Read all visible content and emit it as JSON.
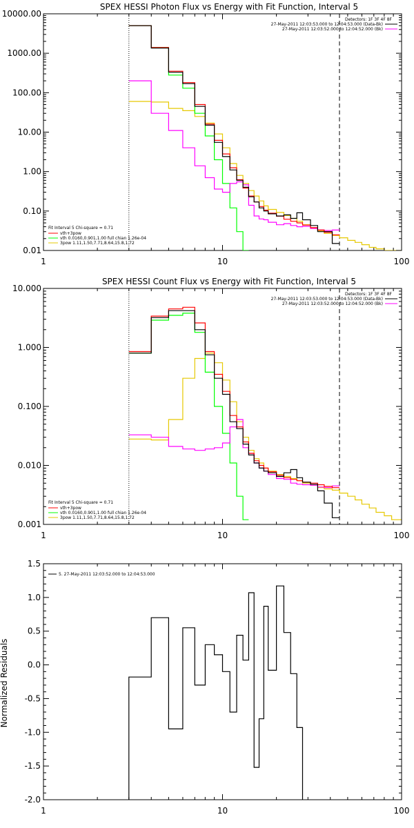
{
  "colors": {
    "background": "#ffffff",
    "axes": "#000000",
    "total": "#000000",
    "fit": "#ff0000",
    "thermal": "#00ff00",
    "power": "#e6c800",
    "background_series": "#ff00ff"
  },
  "chart_data": [
    {
      "type": "line",
      "title": "SPEX HESSI Photon Flux vs Energy with Fit Function, Interval 5",
      "xlabel": "",
      "ylabel": "",
      "xscale": "log",
      "yscale": "log",
      "xlim": [
        1,
        100
      ],
      "ylim": [
        0.01,
        10000
      ],
      "grid": false,
      "x_ticks": [
        "1",
        "10",
        "100"
      ],
      "y_ticks": [
        "0.01",
        "0.10",
        "1.00",
        "10.00",
        "100.00",
        "1000.00",
        "10000.00"
      ],
      "fit_range_markers": {
        "dotted": 3,
        "dashed": 45
      },
      "legend_topright": {
        "header": "Detectors: 1F 3F 4F 8F",
        "lines": [
          "27-May-2011 12:03:53.000 to 12:04:53.000 (Data-Bk)",
          "27-May-2011 12:03:52.000 to 12:04:52.000 (Bk)"
        ],
        "colors": [
          "total",
          "background_series"
        ]
      },
      "legend_bottomleft": {
        "lines": [
          "Fit Interval 5   Chi-square = 0.71",
          "vth+3pow",
          "vth 0.0160,0.901,1.00  full chian 1.26e-04",
          "3pow 1.11,1.50,7.71,8.64,15.8,1.72"
        ],
        "colors": [
          "none",
          "fit",
          "thermal",
          "power"
        ]
      },
      "edges": [
        3,
        4,
        5,
        6,
        7,
        8,
        9,
        10,
        11,
        12,
        13,
        14,
        15,
        16,
        17,
        18,
        20,
        22,
        24,
        26,
        28,
        31,
        34,
        37,
        41,
        45,
        50,
        55,
        60,
        66,
        72,
        80,
        88,
        100
      ],
      "series": [
        {
          "name": "Data-Bk",
          "color_key": "total",
          "values": [
            5000,
            1350,
            330,
            170,
            45,
            15,
            5.5,
            2.4,
            1.1,
            0.6,
            0.4,
            0.23,
            0.17,
            0.12,
            0.1,
            0.085,
            0.075,
            0.08,
            0.065,
            0.09,
            0.06,
            0.043,
            0.03,
            0.03,
            0.015
          ]
        },
        {
          "name": "Bk",
          "color_key": "background_series",
          "values": [
            200,
            30,
            11,
            4,
            1.4,
            0.7,
            0.36,
            0.3,
            0.5,
            0.55,
            0.46,
            0.14,
            0.075,
            0.063,
            0.06,
            0.052,
            0.045,
            0.048,
            0.043,
            0.04,
            0.041,
            0.036,
            0.033,
            0.032,
            0.033
          ]
        },
        {
          "name": "vth+3pow",
          "color_key": "fit",
          "values": [
            5000,
            1400,
            350,
            180,
            50,
            16,
            6.2,
            2.8,
            1.25,
            0.62,
            0.38,
            0.24,
            0.17,
            0.13,
            0.105,
            0.088,
            0.074,
            0.062,
            0.055,
            0.05,
            0.044,
            0.038,
            0.033,
            0.029,
            0.025
          ]
        },
        {
          "name": "vth",
          "color_key": "thermal",
          "values": [
            5000,
            1400,
            280,
            130,
            30,
            8,
            2,
            0.5,
            0.12,
            0.03,
            0.008
          ]
        },
        {
          "name": "3pow",
          "color_key": "power",
          "values": [
            60,
            58,
            40,
            35,
            25,
            17,
            9,
            4,
            1.6,
            0.8,
            0.5,
            0.33,
            0.24,
            0.18,
            0.135,
            0.11,
            0.092,
            0.077,
            0.065,
            0.055,
            0.045,
            0.037,
            0.031,
            0.027,
            0.024,
            0.021,
            0.018,
            0.016,
            0.014,
            0.012,
            0.011,
            0.01,
            0.009
          ]
        }
      ]
    },
    {
      "type": "line",
      "title": "SPEX HESSI Count Flux vs Energy with Fit Function, Interval 5",
      "xlabel": "",
      "ylabel": "",
      "xscale": "log",
      "yscale": "log",
      "xlim": [
        1,
        100
      ],
      "ylim": [
        0.001,
        10
      ],
      "grid": false,
      "x_ticks": [
        "1",
        "10",
        "100"
      ],
      "y_ticks": [
        "0.001",
        "0.010",
        "0.100",
        "1.000",
        "10.000"
      ],
      "fit_range_markers": {
        "dotted": 3,
        "dashed": 45
      },
      "legend_topright": {
        "header": "Detectors: 1F 3F 4F 8F",
        "lines": [
          "27-May-2011 12:03:53.000 to 12:04:53.000 (Data-Bk)",
          "27-May-2011 12:03:52.000 to 12:04:52.000 (Bk)"
        ],
        "colors": [
          "total",
          "background_series"
        ]
      },
      "legend_bottomleft": {
        "lines": [
          "Fit Interval 5   Chi-square = 0.71",
          "vth+3pow",
          "vth 0.0160,0.901,1.00  full chian 1.26e-04",
          "3pow 1.11,1.50,7.71,8.64,15.8,1.72"
        ],
        "colors": [
          "none",
          "fit",
          "thermal",
          "power"
        ]
      },
      "edges": [
        3,
        4,
        5,
        6,
        7,
        8,
        9,
        10,
        11,
        12,
        13,
        14,
        15,
        16,
        17,
        18,
        20,
        22,
        24,
        26,
        28,
        31,
        34,
        37,
        41,
        45,
        50,
        55,
        60,
        66,
        72,
        80,
        88,
        100
      ],
      "series": [
        {
          "name": "Data-Bk",
          "color_key": "total",
          "values": [
            0.8,
            3.2,
            4.2,
            4.2,
            2.0,
            0.75,
            0.3,
            0.16,
            0.055,
            0.042,
            0.023,
            0.015,
            0.011,
            0.009,
            0.008,
            0.0075,
            0.0065,
            0.0075,
            0.0085,
            0.0062,
            0.0052,
            0.0048,
            0.0037,
            0.0023,
            0.0013
          ]
        },
        {
          "name": "Bk",
          "color_key": "background_series",
          "values": [
            0.033,
            0.03,
            0.021,
            0.019,
            0.018,
            0.019,
            0.02,
            0.024,
            0.045,
            0.06,
            0.02,
            0.016,
            0.011,
            0.009,
            0.008,
            0.007,
            0.006,
            0.0058,
            0.005,
            0.0048,
            0.0047,
            0.0046,
            0.0043,
            0.0042,
            0.0045
          ]
        },
        {
          "name": "vth+3pow",
          "color_key": "fit",
          "values": [
            0.85,
            3.4,
            4.5,
            4.8,
            2.6,
            0.85,
            0.35,
            0.18,
            0.07,
            0.045,
            0.025,
            0.016,
            0.012,
            0.01,
            0.009,
            0.0078,
            0.0068,
            0.0062,
            0.0058,
            0.0055,
            0.0052,
            0.005,
            0.0047,
            0.0044,
            0.0042
          ]
        },
        {
          "name": "vth",
          "color_key": "thermal",
          "values": [
            0.8,
            2.9,
            3.5,
            3.8,
            1.8,
            0.38,
            0.1,
            0.035,
            0.011,
            0.003,
            0.0012
          ]
        },
        {
          "name": "3pow",
          "color_key": "power",
          "values": [
            0.028,
            0.027,
            0.06,
            0.3,
            0.65,
            0.8,
            0.55,
            0.28,
            0.12,
            0.055,
            0.03,
            0.018,
            0.013,
            0.011,
            0.009,
            0.008,
            0.007,
            0.0065,
            0.006,
            0.0055,
            0.005,
            0.0046,
            0.0042,
            0.004,
            0.0038,
            0.0034,
            0.003,
            0.0026,
            0.0022,
            0.0019,
            0.0016,
            0.0014,
            0.0012
          ]
        }
      ]
    },
    {
      "type": "line",
      "title": "",
      "xlabel": "",
      "ylabel": "Normalized Residuals",
      "xscale": "log",
      "yscale": "linear",
      "xlim": [
        1,
        100
      ],
      "ylim": [
        -2.0,
        1.5
      ],
      "grid": false,
      "x_ticks": [
        "1",
        "10",
        "100"
      ],
      "y_ticks": [
        "1.5",
        "1.0",
        "0.5",
        "0.0",
        "-0.5",
        "-1.0",
        "-1.5",
        "-2.0"
      ],
      "legend_topleft": {
        "lines": [
          "5. 27-May-2011 12:03:52.000 to 12:04:53.000"
        ],
        "colors": [
          "total"
        ]
      },
      "edges": [
        3,
        4,
        5,
        6,
        7,
        8,
        9,
        10,
        11,
        12,
        13,
        14,
        15,
        16,
        17,
        18,
        20,
        22,
        24,
        26,
        28,
        31,
        34,
        37,
        41,
        45
      ],
      "series": [
        {
          "name": "5. 27-May-2011 12:03:52.000 to 12:04:53.000",
          "color_key": "total",
          "values": [
            -0.18,
            0.7,
            -0.95,
            0.55,
            -0.3,
            0.3,
            0.15,
            -0.1,
            -0.7,
            0.44,
            0.07,
            1.07,
            -1.52,
            -0.8,
            0.87,
            -0.08,
            1.17,
            0.48,
            -0.13,
            -0.93
          ]
        }
      ]
    }
  ]
}
